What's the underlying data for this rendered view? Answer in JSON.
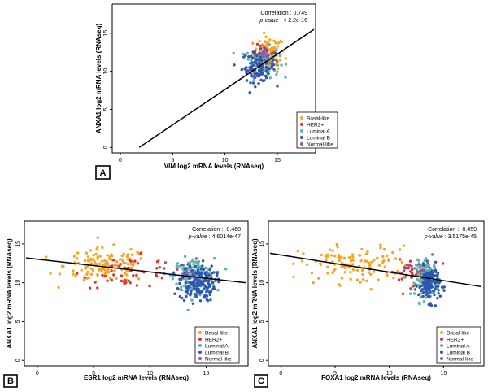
{
  "colors": {
    "Basal-like": "#f5a623",
    "HER2+": "#e8302a",
    "Luminal A": "#5fb3a8",
    "Luminal B": "#2f56b0",
    "Normal-like": "#9b4fb5",
    "regression": "#000000"
  },
  "chart_data": [
    {
      "type": "scatter",
      "panel": "A",
      "xlabel": "VIM log2 mRNA levels (RNAseq)",
      "ylabel": "ANXA1 log2 mRNA levels (RNAseq)",
      "xlim": [
        0,
        18.5
      ],
      "ylim": [
        -0.5,
        18.5
      ],
      "xticks": [
        0,
        5,
        10,
        15
      ],
      "yticks": [
        0,
        5,
        10,
        15
      ],
      "correlation_text": "Correlation : 0.749",
      "pvalue_label": "p-value",
      "pvalue_text": " : < 2.2e-16",
      "legend": [
        "Basal-like",
        "HER2+",
        "Luminal A",
        "Luminal B",
        "Normal-like"
      ],
      "legend_position": "bottom-right",
      "regression": {
        "x1": 1.8,
        "y1": 0,
        "x2": 18.5,
        "y2": 15.5
      },
      "clusters": [
        {
          "series": "Basal-like",
          "n": 80,
          "cx": 14.2,
          "cy": 12.3,
          "sx": 0.75,
          "sy": 1.1
        },
        {
          "series": "HER2+",
          "n": 40,
          "cx": 13.8,
          "cy": 11.6,
          "sx": 0.6,
          "sy": 0.9
        },
        {
          "series": "Luminal A",
          "n": 110,
          "cx": 13.6,
          "cy": 11.2,
          "sx": 0.8,
          "sy": 1.0
        },
        {
          "series": "Luminal B",
          "n": 90,
          "cx": 13.2,
          "cy": 10.6,
          "sx": 0.8,
          "sy": 1.0
        },
        {
          "series": "Normal-like",
          "n": 12,
          "cx": 13.8,
          "cy": 11.5,
          "sx": 0.5,
          "sy": 0.7
        }
      ]
    },
    {
      "type": "scatter",
      "panel": "B",
      "xlabel": "ESR1 log2 mRNA levels (RNAseq)",
      "ylabel": "ANXA1 log2 mRNA levels (RNAseq)",
      "xlim": [
        -1,
        18.5
      ],
      "ylim": [
        -0.5,
        17.5
      ],
      "xticks": [
        0,
        5,
        10,
        15
      ],
      "yticks": [
        0,
        5,
        10,
        15
      ],
      "correlation_text": "Correlation : -0.468",
      "pvalue_label": "p-value",
      "pvalue_text": " : 4.6014e-47",
      "legend": [
        "Basal-like",
        "HER2+",
        "Luminal A",
        "Luminal B",
        "Normal-like"
      ],
      "legend_position": "bottom-right",
      "regression": {
        "x1": -1,
        "y1": 13.2,
        "x2": 18.5,
        "y2": 10.0
      },
      "clusters": [
        {
          "series": "Basal-like",
          "n": 140,
          "cx": 6.2,
          "cy": 12.2,
          "sx": 1.9,
          "sy": 1.1
        },
        {
          "series": "HER2+",
          "n": 45,
          "cx": 8.0,
          "cy": 11.4,
          "sx": 2.0,
          "sy": 1.0
        },
        {
          "series": "Luminal A",
          "n": 170,
          "cx": 13.9,
          "cy": 10.9,
          "sx": 0.9,
          "sy": 1.1
        },
        {
          "series": "Luminal B",
          "n": 150,
          "cx": 14.2,
          "cy": 10.0,
          "sx": 0.8,
          "sy": 1.2
        },
        {
          "series": "Normal-like",
          "n": 15,
          "cx": 13.0,
          "cy": 11.5,
          "sx": 0.8,
          "sy": 0.8
        }
      ]
    },
    {
      "type": "scatter",
      "panel": "C",
      "xlabel": "FOXA1 log2 mRNA levels (RNAseq)",
      "ylabel": "ANXA1 log2 mRNA levels (RNAseq)",
      "xlim": [
        -1,
        18.5
      ],
      "ylim": [
        -0.5,
        17.5
      ],
      "xticks": [
        0,
        5,
        10,
        15
      ],
      "yticks": [
        0,
        5,
        10,
        15
      ],
      "correlation_text": "Correlation : -0.459",
      "pvalue_label": "p-value",
      "pvalue_text": " : 3.5175e-45",
      "legend": [
        "Basal-like",
        "HER2+",
        "Luminal A",
        "Luminal B",
        "Normal-like"
      ],
      "legend_position": "bottom-right",
      "regression": {
        "x1": -1,
        "y1": 13.8,
        "x2": 18.5,
        "y2": 9.5
      },
      "clusters": [
        {
          "series": "Basal-like",
          "n": 120,
          "cx": 7.0,
          "cy": 12.3,
          "sx": 2.6,
          "sy": 1.2
        },
        {
          "series": "HER2+",
          "n": 35,
          "cx": 11.8,
          "cy": 11.4,
          "sx": 1.2,
          "sy": 0.9
        },
        {
          "series": "Luminal A",
          "n": 140,
          "cx": 13.5,
          "cy": 10.5,
          "sx": 0.55,
          "sy": 1.1
        },
        {
          "series": "Luminal B",
          "n": 130,
          "cx": 13.7,
          "cy": 9.8,
          "sx": 0.5,
          "sy": 1.1
        },
        {
          "series": "Normal-like",
          "n": 12,
          "cx": 13.0,
          "cy": 11.8,
          "sx": 0.6,
          "sy": 0.8
        }
      ]
    }
  ]
}
